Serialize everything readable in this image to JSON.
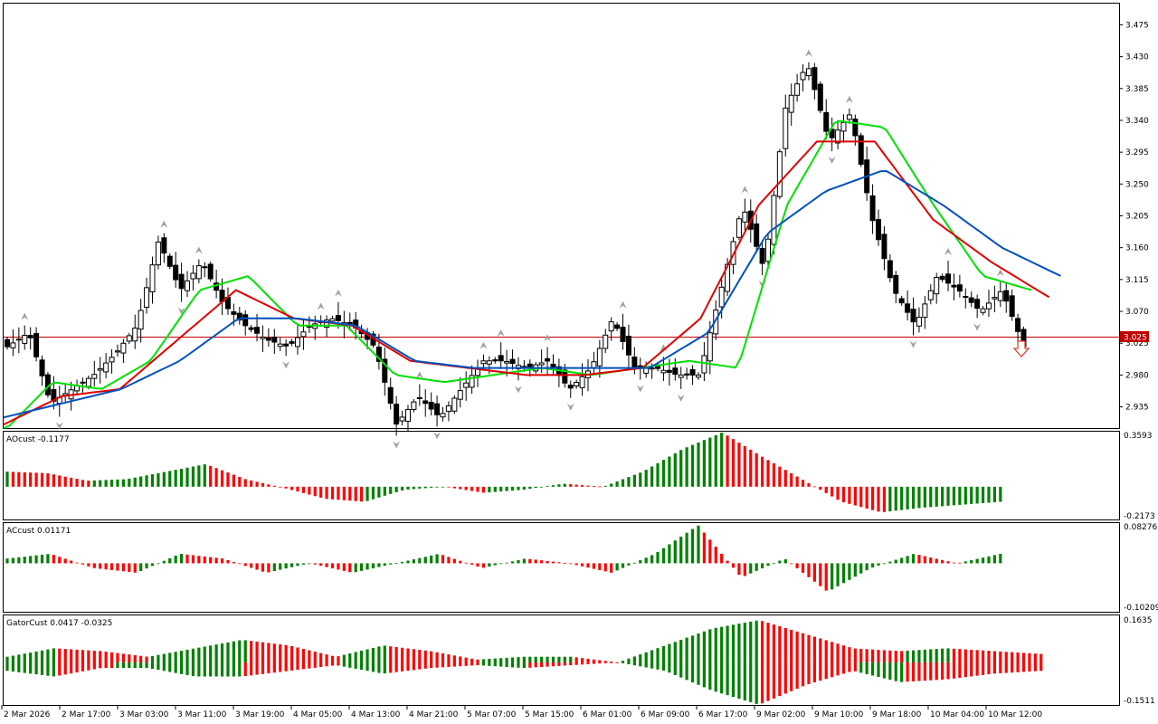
{
  "chart_data": [
    {
      "type": "candlestick",
      "title": "",
      "price_axis_ticks": [
        "3.475",
        "3.430",
        "3.385",
        "3.340",
        "3.295",
        "3.250",
        "3.205",
        "3.160",
        "3.115",
        "3.070",
        "3.025",
        "2.980",
        "2.935"
      ],
      "current_price": "3.025",
      "ylim": [
        2.905,
        3.505
      ],
      "x_labels": [
        "2 Mar 2026",
        "2 Mar 17:00",
        "3 Mar 03:00",
        "3 Mar 11:00",
        "3 Mar 19:00",
        "4 Mar 05:00",
        "4 Mar 13:00",
        "4 Mar 21:00",
        "5 Mar 07:00",
        "5 Mar 15:00",
        "6 Mar 01:00",
        "6 Mar 09:00",
        "6 Mar 17:00",
        "9 Mar 02:00",
        "9 Mar 10:00",
        "9 Mar 18:00",
        "10 Mar 04:00",
        "10 Mar 12:00"
      ],
      "anchor_closes": [
        3.02,
        3.04,
        2.94,
        2.96,
        2.98,
        3.01,
        3.05,
        3.17,
        3.1,
        3.14,
        3.08,
        3.05,
        3.03,
        3.02,
        3.05,
        3.06,
        3.05,
        3.02,
        2.91,
        2.95,
        2.92,
        2.96,
        3.0,
        3.0,
        2.99,
        3.0,
        2.96,
        2.99,
        3.06,
        2.99,
        2.99,
        2.98,
        2.98,
        3.1,
        3.22,
        3.13,
        3.36,
        3.42,
        3.31,
        3.35,
        3.2,
        3.1,
        3.05,
        3.12,
        3.1,
        3.07,
        3.1,
        3.02
      ],
      "series": [
        {
          "name": "",
          "color": "#00e000",
          "values": [
            2.9,
            2.97,
            2.96,
            3.0,
            3.1,
            3.12,
            3.05,
            3.05,
            2.98,
            2.97,
            2.98,
            2.99,
            2.98,
            2.99,
            3.0,
            2.99,
            3.22,
            3.34,
            3.33,
            3.22,
            3.12,
            3.1
          ]
        },
        {
          "name": "",
          "color": "#e00000",
          "values": [
            2.91,
            2.95,
            2.96,
            3.03,
            3.1,
            3.06,
            3.05,
            3.0,
            2.99,
            2.98,
            2.98,
            2.99,
            3.06,
            3.22,
            3.31,
            3.31,
            3.2,
            3.14,
            3.09
          ]
        },
        {
          "name": "",
          "color": "#0050c0",
          "values": [
            2.92,
            2.94,
            2.96,
            3.0,
            3.06,
            3.06,
            3.05,
            3.0,
            2.99,
            2.99,
            2.99,
            2.99,
            3.04,
            3.18,
            3.24,
            3.27,
            3.22,
            3.16,
            3.12
          ]
        }
      ]
    },
    {
      "type": "bar",
      "title": "AOcust -0.1177",
      "axis_max": "0.3593",
      "axis_min": "-0.2173",
      "ylim": [
        -0.2173,
        0.3593
      ],
      "anchors": [
        0.1,
        0.09,
        0.04,
        0.05,
        0.1,
        0.15,
        0.05,
        -0.01,
        -0.08,
        -0.1,
        -0.02,
        0.0,
        -0.04,
        -0.02,
        0.02,
        0.0,
        0.1,
        0.25,
        0.36,
        0.2,
        0.05,
        -0.1,
        -0.17,
        -0.14,
        -0.12,
        -0.1
      ]
    },
    {
      "type": "bar",
      "title": "ACcust 0.01171",
      "axis_max": "0.08276",
      "axis_min": "-0.10209",
      "ylim": [
        -0.10209,
        0.08276
      ],
      "anchors": [
        0.01,
        0.02,
        -0.01,
        -0.02,
        0.02,
        0.01,
        -0.02,
        0.0,
        -0.02,
        0.0,
        0.02,
        -0.01,
        0.01,
        0.0,
        -0.02,
        0.02,
        0.08,
        -0.03,
        0.01,
        -0.06,
        -0.01,
        0.02,
        0.0,
        0.02
      ]
    },
    {
      "type": "bar",
      "title": "GatorCust 0.0417 -0.0325",
      "axis_max": "0.1635",
      "axis_min": "-0.1511",
      "ylim": [
        -0.1511,
        0.1635
      ],
      "upper_anchors": [
        0.02,
        0.05,
        0.04,
        0.02,
        0.05,
        0.08,
        0.06,
        0.02,
        0.06,
        0.04,
        0.01,
        0.02,
        0.02,
        0.0,
        0.06,
        0.12,
        0.15,
        0.1,
        0.05,
        0.04,
        0.05,
        0.04,
        0.03
      ],
      "lower_anchors": [
        -0.03,
        -0.05,
        -0.02,
        -0.02,
        -0.05,
        -0.05,
        -0.03,
        -0.01,
        -0.04,
        -0.02,
        -0.01,
        -0.02,
        -0.01,
        0.0,
        -0.03,
        -0.1,
        -0.15,
        -0.08,
        -0.03,
        -0.07,
        -0.06,
        -0.04,
        -0.03
      ]
    }
  ]
}
